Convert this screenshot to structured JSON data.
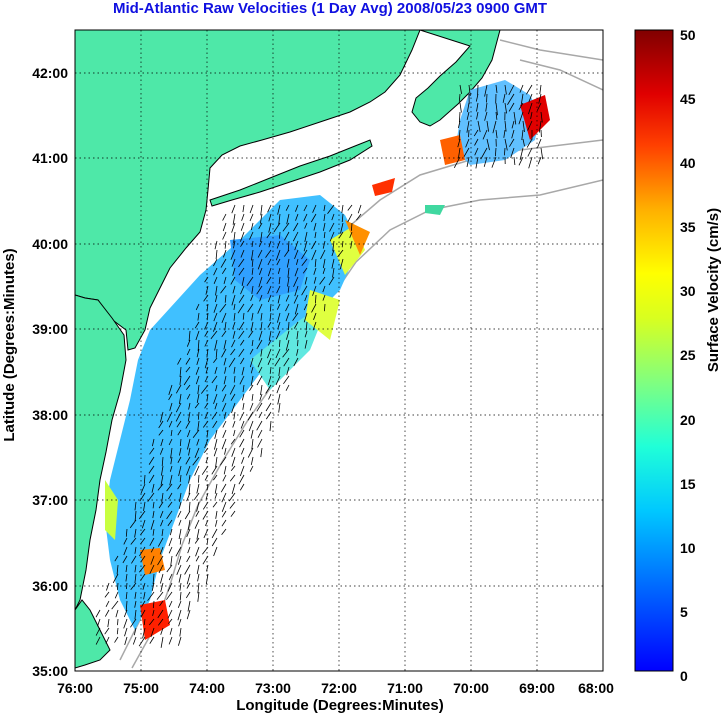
{
  "title": "Mid-Atlantic Raw Velocities (1 Day Avg) 2008/05/23 0900 GMT",
  "axes": {
    "xlabel": "Longitude (Degrees:Minutes)",
    "ylabel": "Latitude (Degrees:Minutes)",
    "x_ticks": [
      "76:00",
      "75:00",
      "74:00",
      "73:00",
      "72:00",
      "71:00",
      "70:00",
      "69:00",
      "68:00"
    ],
    "y_ticks": [
      "35:00",
      "36:00",
      "37:00",
      "38:00",
      "39:00",
      "40:00",
      "41:00",
      "42:00"
    ],
    "xlim": [
      -76,
      -68
    ],
    "ylim": [
      35,
      42.5
    ]
  },
  "colorbar": {
    "label": "Surface Velocity (cm/s)",
    "ticks": [
      "0",
      "5",
      "10",
      "15",
      "20",
      "25",
      "30",
      "35",
      "40",
      "45",
      "50"
    ],
    "range": [
      0,
      50
    ]
  },
  "colors": {
    "land": "#4ee8a8",
    "title": "#1010e0",
    "coast_line": "#000000",
    "bathymetry": "#a8a8a8"
  }
}
